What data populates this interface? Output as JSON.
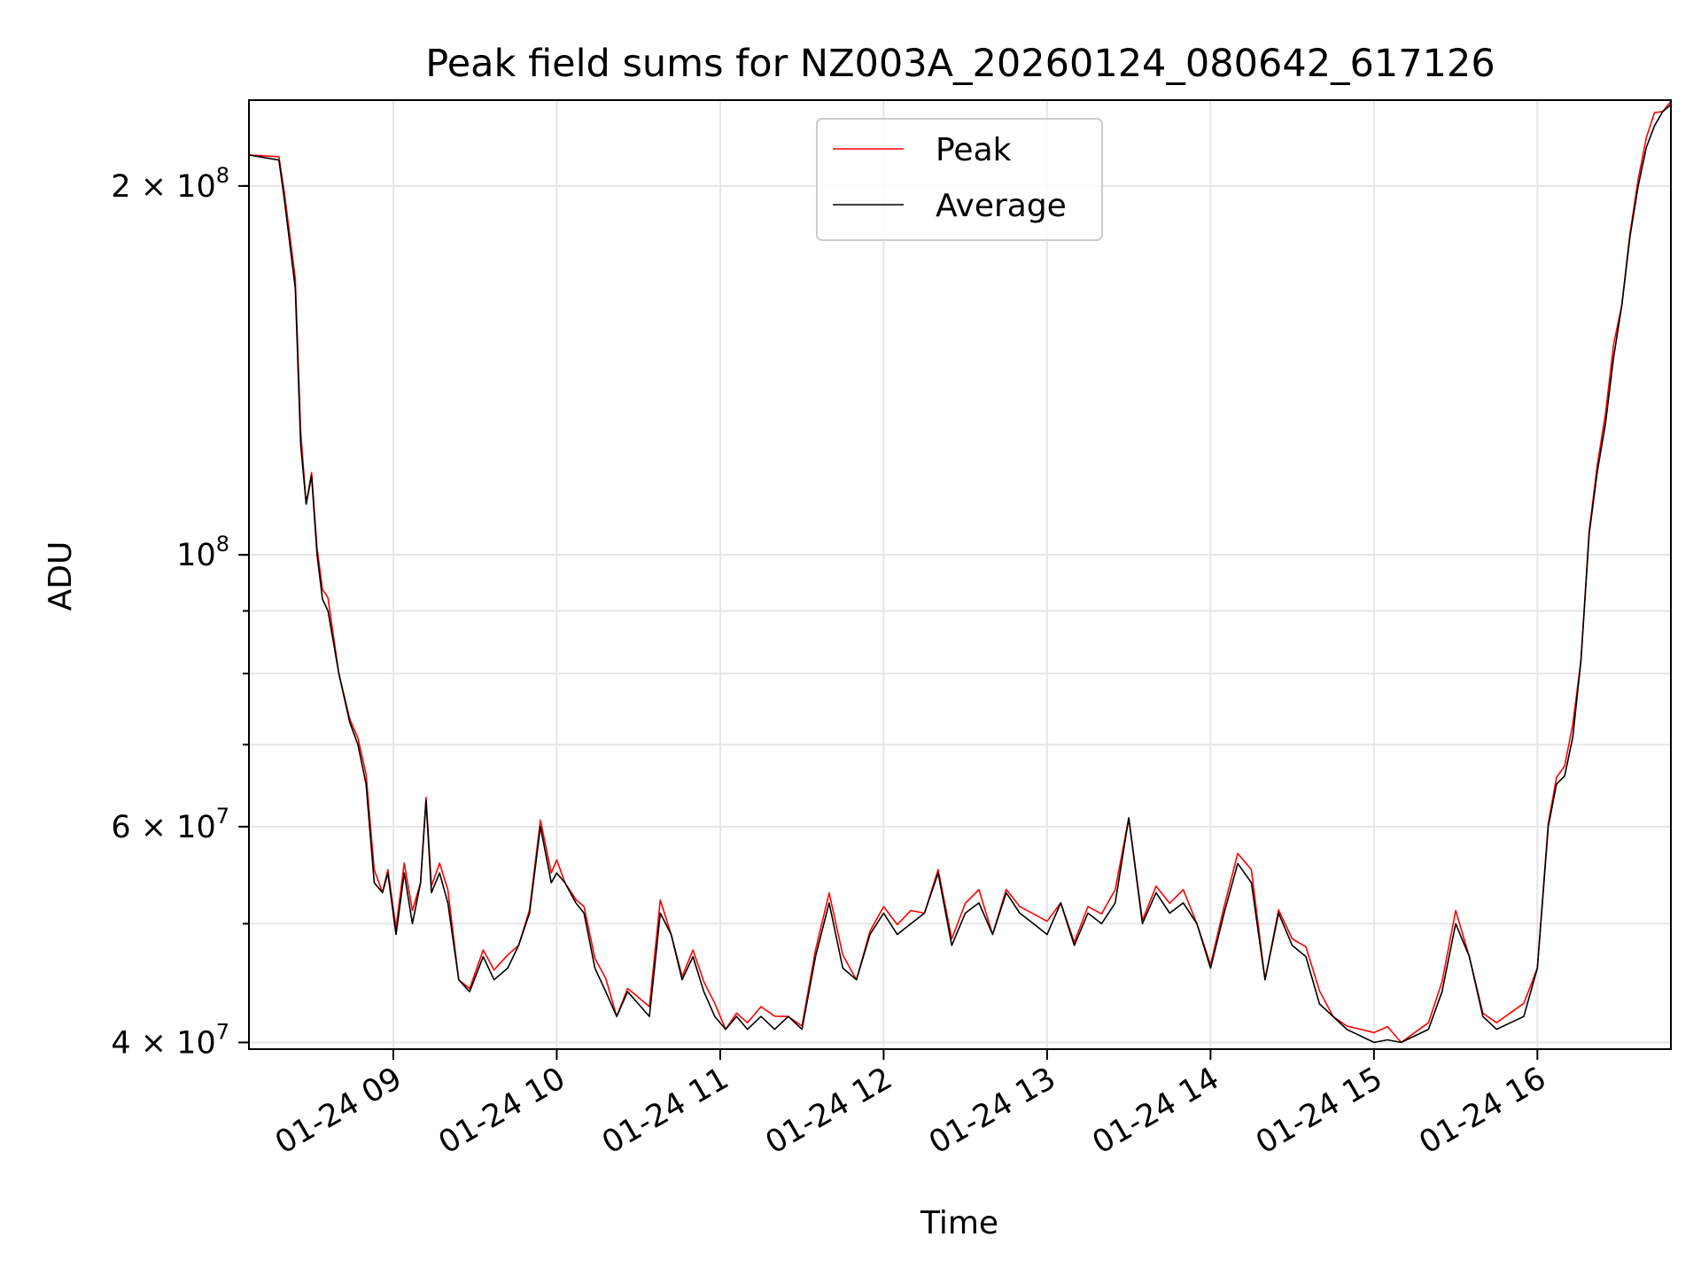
{
  "chart_data": {
    "type": "line",
    "title": "Peak field sums for NZ003A_20260124_080642_617126",
    "xlabel": "Time",
    "ylabel": "ADU",
    "yscale": "log",
    "grid": true,
    "legend_position": "top-center",
    "x_ticks": [
      "01-24 09",
      "01-24 10",
      "01-24 11",
      "01-24 12",
      "01-24 13",
      "01-24 14",
      "01-24 15",
      "01-24 16"
    ],
    "y_ticks": [
      {
        "value": 40000000,
        "mantissa": "4",
        "exponent": "7"
      },
      {
        "value": 60000000,
        "mantissa": "6",
        "exponent": "7"
      },
      {
        "value": 100000000,
        "mantissa": "",
        "exponent": "8"
      },
      {
        "value": 200000000,
        "mantissa": "2",
        "exponent": "8"
      }
    ],
    "xlim": [
      "2026-01-24 08:07",
      "2026-01-24 16:49"
    ],
    "ylim": [
      39500000,
      235000000
    ],
    "series": [
      {
        "name": "Peak",
        "color": "#ff0000"
      },
      {
        "name": "Average",
        "color": "#000000"
      }
    ],
    "x": [
      "08:07",
      "08:18",
      "08:20",
      "08:24",
      "08:26",
      "08:28",
      "08:30",
      "08:32",
      "08:34",
      "08:36",
      "08:40",
      "08:44",
      "08:47",
      "08:50",
      "08:53",
      "08:56",
      "08:58",
      "09:01",
      "09:04",
      "09:07",
      "09:10",
      "09:12",
      "09:14",
      "09:17",
      "09:20",
      "09:24",
      "09:28",
      "09:33",
      "09:37",
      "09:42",
      "09:46",
      "09:50",
      "09:54",
      "09:58",
      "10:00",
      "10:03",
      "10:07",
      "10:10",
      "10:14",
      "10:18",
      "10:22",
      "10:26",
      "10:30",
      "10:34",
      "10:38",
      "10:42",
      "10:46",
      "10:50",
      "10:54",
      "10:58",
      "11:02",
      "11:06",
      "11:10",
      "11:15",
      "11:20",
      "11:25",
      "11:30",
      "11:35",
      "11:40",
      "11:45",
      "11:50",
      "11:55",
      "12:00",
      "12:05",
      "12:10",
      "12:15",
      "12:20",
      "12:25",
      "12:30",
      "12:35",
      "12:40",
      "12:45",
      "12:50",
      "12:55",
      "13:00",
      "13:05",
      "13:10",
      "13:15",
      "13:20",
      "13:25",
      "13:30",
      "13:35",
      "13:40",
      "13:45",
      "13:50",
      "13:55",
      "14:00",
      "14:05",
      "14:10",
      "14:15",
      "14:20",
      "14:25",
      "14:30",
      "14:35",
      "14:40",
      "14:45",
      "14:50",
      "14:55",
      "15:00",
      "15:05",
      "15:10",
      "15:15",
      "15:20",
      "15:25",
      "15:30",
      "15:35",
      "15:40",
      "15:45",
      "15:50",
      "15:55",
      "16:00",
      "16:04",
      "16:07",
      "16:10",
      "16:13",
      "16:16",
      "16:19",
      "16:22",
      "16:25",
      "16:28",
      "16:31",
      "16:34",
      "16:37",
      "16:40",
      "16:43",
      "16:46",
      "16:49"
    ],
    "average": [
      212000000,
      210000000,
      195000000,
      165000000,
      123000000,
      110000000,
      116000000,
      100000000,
      92000000,
      90000000,
      80000000,
      73000000,
      70000000,
      65000000,
      54000000,
      53000000,
      55000000,
      49000000,
      55000000,
      50000000,
      54000000,
      63000000,
      53000000,
      55000000,
      52000000,
      45000000,
      44000000,
      47000000,
      45000000,
      46000000,
      48000000,
      51000000,
      60000000,
      54000000,
      55000000,
      54000000,
      52000000,
      51000000,
      46000000,
      44000000,
      42000000,
      44000000,
      43000000,
      42000000,
      51000000,
      49000000,
      45000000,
      47000000,
      44000000,
      42000000,
      41000000,
      42000000,
      41000000,
      42000000,
      41000000,
      42000000,
      41000000,
      47000000,
      52000000,
      46000000,
      45000000,
      49000000,
      51000000,
      49000000,
      50000000,
      51000000,
      55000000,
      48000000,
      51000000,
      52000000,
      49000000,
      53000000,
      51000000,
      50000000,
      49000000,
      52000000,
      48000000,
      51000000,
      50000000,
      52000000,
      61000000,
      50000000,
      53000000,
      51000000,
      52000000,
      50000000,
      46000000,
      51000000,
      56000000,
      54000000,
      45000000,
      51000000,
      48000000,
      47000000,
      43000000,
      42000000,
      41000000,
      40500000,
      40000000,
      40200000,
      40000000,
      40500000,
      41000000,
      44000000,
      50000000,
      47000000,
      42000000,
      41000000,
      41500000,
      42000000,
      46000000,
      60000000,
      65000000,
      66000000,
      71000000,
      82000000,
      104000000,
      117000000,
      128000000,
      145000000,
      160000000,
      182000000,
      200000000,
      215000000,
      224000000,
      230000000,
      233000000
    ]
  }
}
